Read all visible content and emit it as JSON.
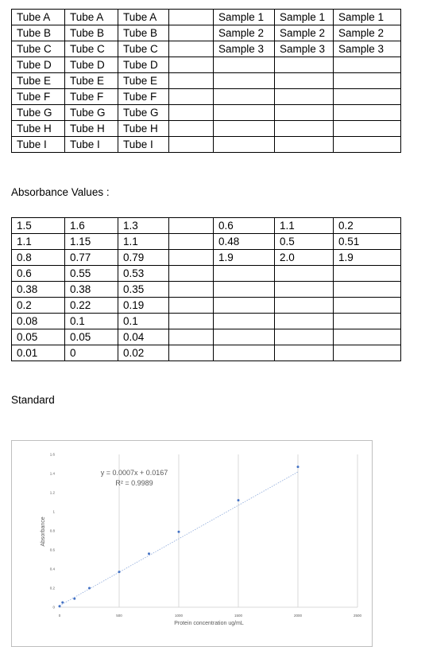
{
  "tubes_table": {
    "rows": [
      [
        "Tube A",
        "Tube A",
        "Tube A",
        "",
        "Sample 1",
        "Sample 1",
        "Sample 1"
      ],
      [
        "Tube B",
        "Tube B",
        "Tube B",
        "",
        "Sample 2",
        "Sample 2",
        "Sample 2"
      ],
      [
        "Tube C",
        "Tube C",
        "Tube C",
        "",
        "Sample 3",
        "Sample 3",
        "Sample 3"
      ],
      [
        "Tube D",
        "Tube D",
        "Tube D",
        "",
        "",
        "",
        ""
      ],
      [
        "Tube E",
        "Tube E",
        "Tube E",
        "",
        "",
        "",
        ""
      ],
      [
        "Tube F",
        "Tube F",
        "Tube F",
        "",
        "",
        "",
        ""
      ],
      [
        "Tube G",
        "Tube G",
        "Tube G",
        "",
        "",
        "",
        ""
      ],
      [
        "Tube H",
        "Tube H",
        "Tube H",
        "",
        "",
        "",
        ""
      ],
      [
        "Tube I",
        "Tube I",
        "Tube I",
        "",
        "",
        "",
        ""
      ]
    ]
  },
  "absorbance_heading": "Absorbance  Values :",
  "absorbance_table": {
    "rows": [
      [
        "1.5",
        "1.6",
        "1.3",
        "",
        "0.6",
        "1.1",
        "0.2"
      ],
      [
        "1.1",
        "1.15",
        "1.1",
        "",
        "0.48",
        "0.5",
        "0.51"
      ],
      [
        "0.8",
        "0.77",
        "0.79",
        "",
        "1.9",
        "2.0",
        "1.9"
      ],
      [
        "0.6",
        "0.55",
        "0.53",
        "",
        "",
        "",
        ""
      ],
      [
        "0.38",
        "0.38",
        "0.35",
        "",
        "",
        "",
        ""
      ],
      [
        "0.2",
        "0.22",
        "0.19",
        "",
        "",
        "",
        ""
      ],
      [
        "0.08",
        "0.1",
        "0.1",
        "",
        "",
        "",
        ""
      ],
      [
        "0.05",
        "0.05",
        "0.04",
        "",
        "",
        "",
        ""
      ],
      [
        "0.01",
        "0",
        "0.02",
        "",
        "",
        "",
        ""
      ]
    ]
  },
  "standard_heading": "Standard",
  "chart_data": {
    "type": "scatter",
    "xlabel": "Protein concentration  ug/mL",
    "ylabel": "Absorbance",
    "xlim": [
      0,
      2500
    ],
    "ylim": [
      0,
      1.6
    ],
    "x_ticks": [
      "0",
      "500",
      "1000",
      "1500",
      "2000",
      "2500"
    ],
    "y_ticks": [
      "0",
      "0.2",
      "0.4",
      "0.6",
      "0.8",
      "1",
      "1.2",
      "1.4",
      "1.6"
    ],
    "series": [
      {
        "x": [
          0,
          25,
          125,
          250,
          500,
          750,
          1000,
          1500,
          2000
        ],
        "y": [
          0.01,
          0.05,
          0.09,
          0.2,
          0.37,
          0.56,
          0.79,
          1.12,
          1.47
        ]
      }
    ],
    "trendline": {
      "slope": 0.0007,
      "intercept": 0.0167
    },
    "equation": "y = 0.0007x + 0.0167",
    "r_squared": "R² = 0.9989",
    "grid": "vertical",
    "point_color": "#4472c4"
  }
}
